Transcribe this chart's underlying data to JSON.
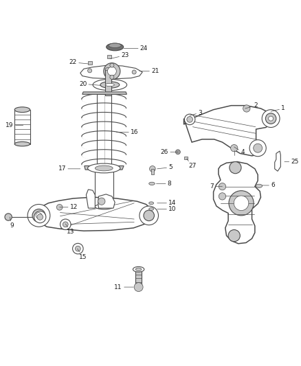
{
  "bg_color": "#ffffff",
  "line_color": "#4a4a4a",
  "label_color": "#1a1a1a",
  "label_fontsize": 6.5,
  "fig_width": 4.38,
  "fig_height": 5.33,
  "dpi": 100,
  "label_specs": [
    [
      24,
      0.415,
      0.955,
      0.055,
      0.0
    ],
    [
      23,
      0.368,
      0.92,
      0.038,
      0.012
    ],
    [
      22,
      0.295,
      0.903,
      -0.038,
      0.005
    ],
    [
      21,
      0.468,
      0.878,
      0.04,
      0.0
    ],
    [
      20,
      0.338,
      0.83,
      -0.048,
      0.005
    ],
    [
      19,
      0.075,
      0.695,
      -0.032,
      0.0
    ],
    [
      16,
      0.39,
      0.672,
      0.048,
      0.0
    ],
    [
      17,
      0.268,
      0.548,
      -0.048,
      0.0
    ],
    [
      5,
      0.528,
      0.548,
      0.038,
      0.005
    ],
    [
      8,
      0.525,
      0.498,
      0.038,
      0.0
    ],
    [
      12,
      0.198,
      0.418,
      0.035,
      0.0
    ],
    [
      14,
      0.528,
      0.432,
      0.038,
      0.0
    ],
    [
      10,
      0.528,
      0.412,
      0.038,
      0.0
    ],
    [
      9,
      0.03,
      0.385,
      0.0,
      -0.03
    ],
    [
      13,
      0.218,
      0.362,
      0.005,
      -0.028
    ],
    [
      15,
      0.258,
      0.278,
      0.005,
      -0.028
    ],
    [
      11,
      0.448,
      0.148,
      -0.038,
      0.0
    ],
    [
      1,
      0.912,
      0.742,
      0.035,
      0.01
    ],
    [
      2,
      0.825,
      0.752,
      0.03,
      0.01
    ],
    [
      3,
      0.638,
      0.728,
      0.028,
      0.01
    ],
    [
      4,
      0.788,
      0.622,
      0.022,
      -0.018
    ],
    [
      26,
      0.598,
      0.605,
      -0.032,
      0.0
    ],
    [
      27,
      0.628,
      0.582,
      0.005,
      -0.025
    ],
    [
      25,
      0.958,
      0.572,
      0.022,
      0.0
    ],
    [
      6,
      0.882,
      0.492,
      0.03,
      0.0
    ],
    [
      7,
      0.748,
      0.488,
      -0.028,
      0.0
    ]
  ]
}
